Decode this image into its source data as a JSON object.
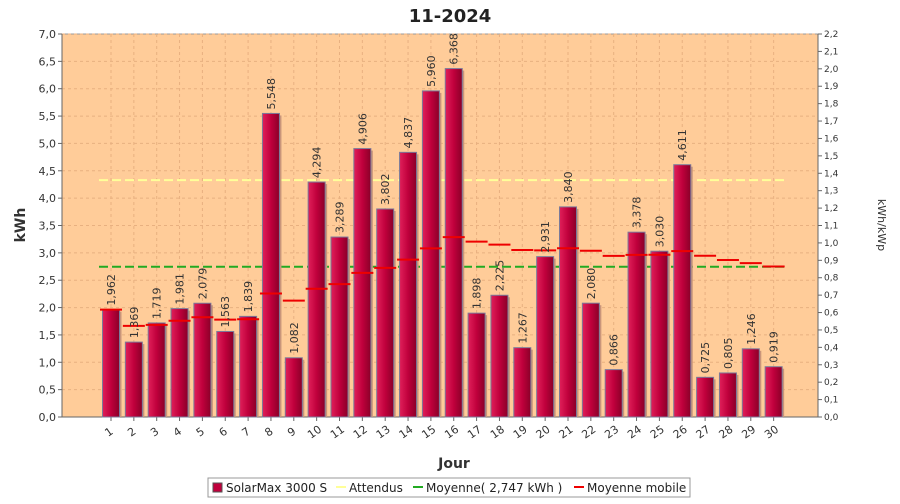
{
  "chart_data": {
    "type": "bar",
    "title": "11-2024",
    "xlabel": "Jour",
    "ylabel": "kWh",
    "y2label": "kWh/kWp",
    "ylim": [
      0,
      7.0
    ],
    "y2lim": [
      0,
      2.2
    ],
    "yticks": [
      "0,0",
      "0,5",
      "1,0",
      "1,5",
      "2,0",
      "2,5",
      "3,0",
      "3,5",
      "4,0",
      "4,5",
      "5,0",
      "5,5",
      "6,0",
      "6,5",
      "7,0"
    ],
    "y2ticks": [
      "0,0",
      "0,1",
      "0,2",
      "0,3",
      "0,4",
      "0,5",
      "0,6",
      "0,7",
      "0,8",
      "0,9",
      "1,0",
      "1,1",
      "1,2",
      "1,3",
      "1,4",
      "1,5",
      "1,6",
      "1,7",
      "1,8",
      "1,9",
      "2,0",
      "2,1",
      "2,2"
    ],
    "categories": [
      "1",
      "2",
      "3",
      "4",
      "5",
      "6",
      "7",
      "8",
      "9",
      "10",
      "11",
      "12",
      "13",
      "14",
      "15",
      "16",
      "17",
      "18",
      "19",
      "20",
      "21",
      "22",
      "23",
      "24",
      "25",
      "26",
      "27",
      "28",
      "29",
      "30"
    ],
    "series": [
      {
        "name": "SolarMax 3000 S",
        "kind": "bar",
        "color": "#c0003c",
        "values": [
          1.962,
          1.369,
          1.719,
          1.981,
          2.079,
          1.563,
          1.839,
          5.548,
          1.082,
          4.294,
          3.289,
          4.906,
          3.802,
          4.837,
          5.96,
          6.368,
          1.898,
          2.225,
          1.267,
          2.931,
          3.84,
          2.08,
          0.866,
          3.378,
          3.03,
          4.611,
          0.725,
          0.805,
          1.246,
          0.919
        ],
        "labels": [
          "1,962",
          "1,369",
          "1,719",
          "1,981",
          "2,079",
          "1,563",
          "1,839",
          "5,548",
          "1,082",
          "4,294",
          "3,289",
          "4,906",
          "3,802",
          "4,837",
          "5,960",
          "6,368",
          "1,898",
          "2,225",
          "1,267",
          "2,931",
          "3,840",
          "2,080",
          "0,866",
          "3,378",
          "3,030",
          "4,611",
          "0,725",
          "0,805",
          "1,246",
          "0,919"
        ]
      },
      {
        "name": "Attendus",
        "kind": "hline",
        "color": "#ffff99",
        "value": 4.33
      },
      {
        "name": "Moyenne( 2,747 kWh )",
        "kind": "hline",
        "color": "#22aa22",
        "value": 2.747
      },
      {
        "name": "Moyenne mobile",
        "kind": "steps",
        "color": "#ee0000",
        "values": [
          1.962,
          1.666,
          1.683,
          1.758,
          1.822,
          1.779,
          1.787,
          2.257,
          2.126,
          2.343,
          2.429,
          2.635,
          2.725,
          2.876,
          3.082,
          3.287,
          3.205,
          3.151,
          3.052,
          3.046,
          3.084,
          3.039,
          2.945,
          2.963,
          2.966,
          3.031,
          2.946,
          2.869,
          2.813,
          2.75
        ]
      }
    ],
    "grid": true,
    "legend": "bottom",
    "plot_background": "#ffcc99"
  }
}
